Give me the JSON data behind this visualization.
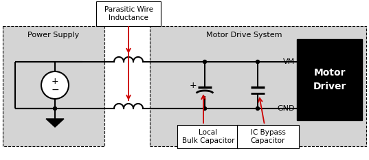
{
  "title_parasitic": "Parasitic Wire\nInductance",
  "title_power_supply": "Power Supply",
  "title_motor_drive": "Motor Drive System",
  "label_vm": "VM",
  "label_gnd": "GND",
  "label_motor_driver": "Motor\nDriver",
  "label_local_cap": "Local\nBulk Capacitor",
  "label_ic_bypass": "IC Bypass\nCapacitor",
  "label_plus": "+",
  "label_minus": "−",
  "white": "#ffffff",
  "black": "#000000",
  "red": "#cc0000",
  "gray_light": "#d4d4d4",
  "figsize": [
    5.37,
    2.33
  ],
  "dpi": 100
}
